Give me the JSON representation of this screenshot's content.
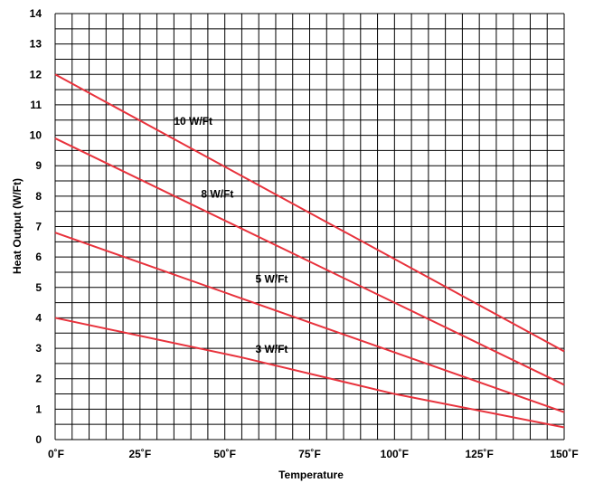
{
  "chart_data": {
    "type": "line",
    "title": "",
    "xlabel": "Temperature",
    "ylabel": "Heat Output (W/Ft)",
    "xlim": [
      0,
      150
    ],
    "ylim": [
      0,
      14
    ],
    "x_ticks": [
      {
        "value": 0,
        "label": "0˚F"
      },
      {
        "value": 25,
        "label": "25˚F"
      },
      {
        "value": 50,
        "label": "50˚F"
      },
      {
        "value": 75,
        "label": "75˚F"
      },
      {
        "value": 100,
        "label": "100˚F"
      },
      {
        "value": 125,
        "label": "125˚F"
      },
      {
        "value": 150,
        "label": "150˚F"
      }
    ],
    "y_ticks": [
      0,
      1,
      2,
      3,
      4,
      5,
      6,
      7,
      8,
      9,
      10,
      11,
      12,
      13,
      14
    ],
    "grid": true,
    "grid_x_step": 5,
    "grid_y_step": 0.5,
    "line_color": "#e8323c",
    "series": [
      {
        "name": "10 W/Ft",
        "x": [
          0,
          150
        ],
        "y": [
          12.0,
          2.9
        ],
        "label_at": [
          35,
          10.35
        ]
      },
      {
        "name": "8 W/Ft",
        "x": [
          0,
          150
        ],
        "y": [
          9.9,
          1.8
        ],
        "label_at": [
          43,
          7.95
        ]
      },
      {
        "name": "5 W/Ft",
        "x": [
          0,
          150
        ],
        "y": [
          6.8,
          0.9
        ],
        "label_at": [
          59,
          5.15
        ]
      },
      {
        "name": "3 W/Ft",
        "x": [
          0,
          55,
          100,
          150
        ],
        "y": [
          4.0,
          2.7,
          1.5,
          0.4
        ],
        "label_at": [
          59,
          2.85
        ]
      }
    ]
  }
}
